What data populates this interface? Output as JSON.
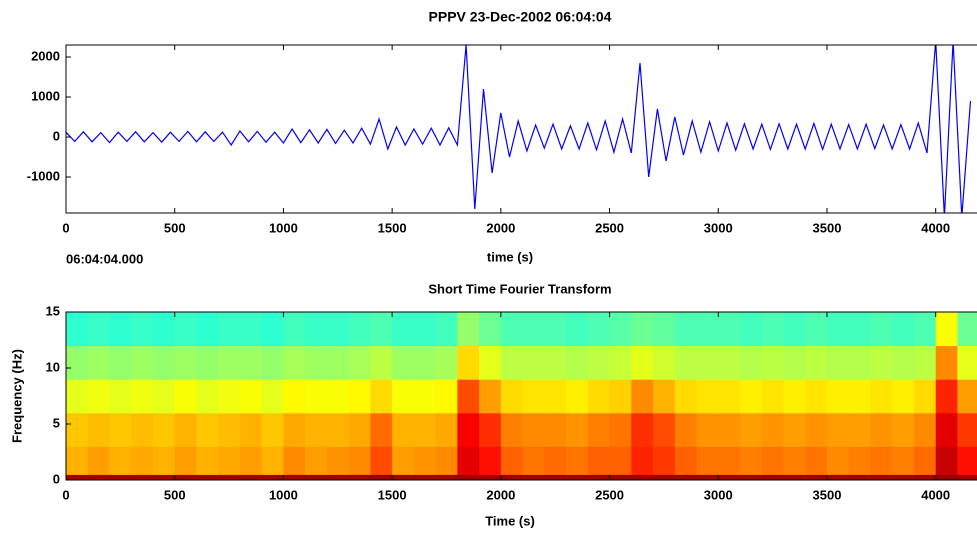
{
  "chart_data": [
    {
      "type": "line",
      "title": "PPPV 23-Dec-2002 06:04:04",
      "xlabel": "time (s)",
      "annotation": "06:04:04.000",
      "color": "#0000ff",
      "xlim": [
        0,
        4190
      ],
      "ylim": [
        -1900,
        2300
      ],
      "xticks": [
        0,
        500,
        1000,
        1500,
        2000,
        2500,
        3000,
        3500,
        4000
      ],
      "yticks": [
        -1000,
        0,
        1000,
        2000
      ],
      "x": [
        0,
        40,
        80,
        120,
        160,
        200,
        240,
        280,
        320,
        360,
        400,
        440,
        480,
        520,
        560,
        600,
        640,
        680,
        720,
        760,
        800,
        840,
        880,
        920,
        960,
        1000,
        1040,
        1080,
        1120,
        1160,
        1200,
        1240,
        1280,
        1320,
        1360,
        1400,
        1440,
        1480,
        1520,
        1560,
        1600,
        1640,
        1680,
        1720,
        1760,
        1800,
        1840,
        1880,
        1920,
        1960,
        2000,
        2040,
        2080,
        2120,
        2160,
        2200,
        2240,
        2280,
        2320,
        2360,
        2400,
        2440,
        2480,
        2520,
        2560,
        2600,
        2640,
        2680,
        2720,
        2760,
        2800,
        2840,
        2880,
        2920,
        2960,
        3000,
        3040,
        3080,
        3120,
        3160,
        3200,
        3240,
        3280,
        3320,
        3360,
        3400,
        3440,
        3480,
        3520,
        3560,
        3600,
        3640,
        3680,
        3720,
        3760,
        3800,
        3840,
        3880,
        3920,
        3960,
        4000,
        4040,
        4080,
        4120,
        4160
      ],
      "values": [
        120,
        -110,
        130,
        -120,
        110,
        -140,
        120,
        -110,
        130,
        -120,
        110,
        -130,
        120,
        -110,
        140,
        -120,
        130,
        -110,
        120,
        -200,
        150,
        -120,
        140,
        -130,
        120,
        -150,
        200,
        -140,
        180,
        -150,
        190,
        -160,
        170,
        -150,
        220,
        -180,
        450,
        -300,
        250,
        -200,
        200,
        -180,
        220,
        -200,
        230,
        -200,
        2300,
        -1800,
        1200,
        -900,
        600,
        -500,
        400,
        -350,
        300,
        -280,
        320,
        -300,
        280,
        -300,
        350,
        -320,
        400,
        -380,
        450,
        -400,
        1850,
        -1000,
        700,
        -600,
        500,
        -450,
        400,
        -380,
        380,
        -350,
        350,
        -330,
        330,
        -300,
        320,
        -310,
        330,
        -300,
        320,
        -300,
        340,
        -310,
        320,
        -300,
        310,
        -300,
        320,
        -290,
        300,
        -300,
        310,
        -300,
        350,
        -400,
        2400,
        -2000,
        2400,
        -2000,
        900
      ]
    },
    {
      "type": "heatmap",
      "title": "Short Time Fourier Transform",
      "xlabel": "Time (s)",
      "ylabel": "Frequency (Hz)",
      "colormap": "jet",
      "xlim": [
        0,
        4190
      ],
      "ylim": [
        0,
        15
      ],
      "xticks": [
        0,
        500,
        1000,
        1500,
        2000,
        2500,
        3000,
        3500,
        4000
      ],
      "yticks": [
        0,
        5,
        10,
        15
      ],
      "xbins": [
        0,
        100,
        200,
        300,
        400,
        500,
        600,
        700,
        800,
        900,
        1000,
        1100,
        1200,
        1300,
        1400,
        1500,
        1600,
        1700,
        1800,
        1900,
        2000,
        2100,
        2200,
        2300,
        2400,
        2500,
        2600,
        2700,
        2800,
        2900,
        3000,
        3100,
        3200,
        3300,
        3400,
        3500,
        3600,
        3700,
        3800,
        3900,
        4000,
        4100,
        4200
      ],
      "ybins": [
        0,
        0.5,
        3,
        6,
        9,
        12,
        15
      ],
      "values": [
        [
          0.97,
          0.97,
          0.97,
          0.97,
          0.97,
          0.97,
          0.97,
          0.97,
          0.97,
          0.97,
          0.97,
          0.97,
          0.97,
          0.97,
          0.97,
          0.97,
          0.97,
          0.97,
          0.97,
          0.97,
          0.97,
          0.97,
          0.97,
          0.97,
          0.97,
          0.97,
          0.97,
          0.97,
          0.97,
          0.97,
          0.97,
          0.97,
          0.97,
          0.97,
          0.97,
          0.97,
          0.97,
          0.97,
          0.97,
          0.97,
          0.97,
          0.97
        ],
        [
          0.7,
          0.72,
          0.7,
          0.71,
          0.7,
          0.72,
          0.7,
          0.71,
          0.72,
          0.7,
          0.74,
          0.72,
          0.73,
          0.74,
          0.8,
          0.72,
          0.73,
          0.74,
          0.9,
          0.86,
          0.78,
          0.76,
          0.77,
          0.76,
          0.78,
          0.78,
          0.84,
          0.82,
          0.78,
          0.76,
          0.76,
          0.75,
          0.76,
          0.75,
          0.76,
          0.74,
          0.75,
          0.76,
          0.75,
          0.77,
          0.93,
          0.86
        ],
        [
          0.68,
          0.69,
          0.68,
          0.69,
          0.68,
          0.7,
          0.68,
          0.69,
          0.7,
          0.68,
          0.71,
          0.7,
          0.7,
          0.71,
          0.77,
          0.7,
          0.7,
          0.71,
          0.88,
          0.83,
          0.75,
          0.74,
          0.74,
          0.73,
          0.75,
          0.76,
          0.83,
          0.8,
          0.75,
          0.73,
          0.73,
          0.72,
          0.73,
          0.72,
          0.73,
          0.72,
          0.72,
          0.73,
          0.72,
          0.74,
          0.9,
          0.82
        ],
        [
          0.6,
          0.61,
          0.6,
          0.61,
          0.6,
          0.62,
          0.6,
          0.61,
          0.62,
          0.6,
          0.63,
          0.62,
          0.62,
          0.63,
          0.66,
          0.62,
          0.62,
          0.63,
          0.8,
          0.72,
          0.66,
          0.65,
          0.65,
          0.64,
          0.66,
          0.67,
          0.74,
          0.7,
          0.66,
          0.65,
          0.65,
          0.64,
          0.65,
          0.64,
          0.65,
          0.64,
          0.64,
          0.65,
          0.64,
          0.66,
          0.84,
          0.72
        ],
        [
          0.52,
          0.53,
          0.52,
          0.53,
          0.52,
          0.53,
          0.52,
          0.53,
          0.53,
          0.52,
          0.54,
          0.53,
          0.53,
          0.54,
          0.56,
          0.53,
          0.53,
          0.54,
          0.66,
          0.6,
          0.56,
          0.56,
          0.56,
          0.55,
          0.56,
          0.57,
          0.6,
          0.58,
          0.56,
          0.56,
          0.56,
          0.55,
          0.56,
          0.55,
          0.56,
          0.55,
          0.55,
          0.56,
          0.55,
          0.56,
          0.74,
          0.6
        ],
        [
          0.42,
          0.43,
          0.42,
          0.43,
          0.42,
          0.43,
          0.42,
          0.43,
          0.43,
          0.42,
          0.44,
          0.43,
          0.43,
          0.44,
          0.45,
          0.43,
          0.43,
          0.44,
          0.52,
          0.48,
          0.45,
          0.45,
          0.45,
          0.44,
          0.45,
          0.46,
          0.48,
          0.47,
          0.45,
          0.45,
          0.45,
          0.44,
          0.45,
          0.44,
          0.45,
          0.44,
          0.44,
          0.45,
          0.44,
          0.45,
          0.62,
          0.48
        ]
      ]
    }
  ]
}
